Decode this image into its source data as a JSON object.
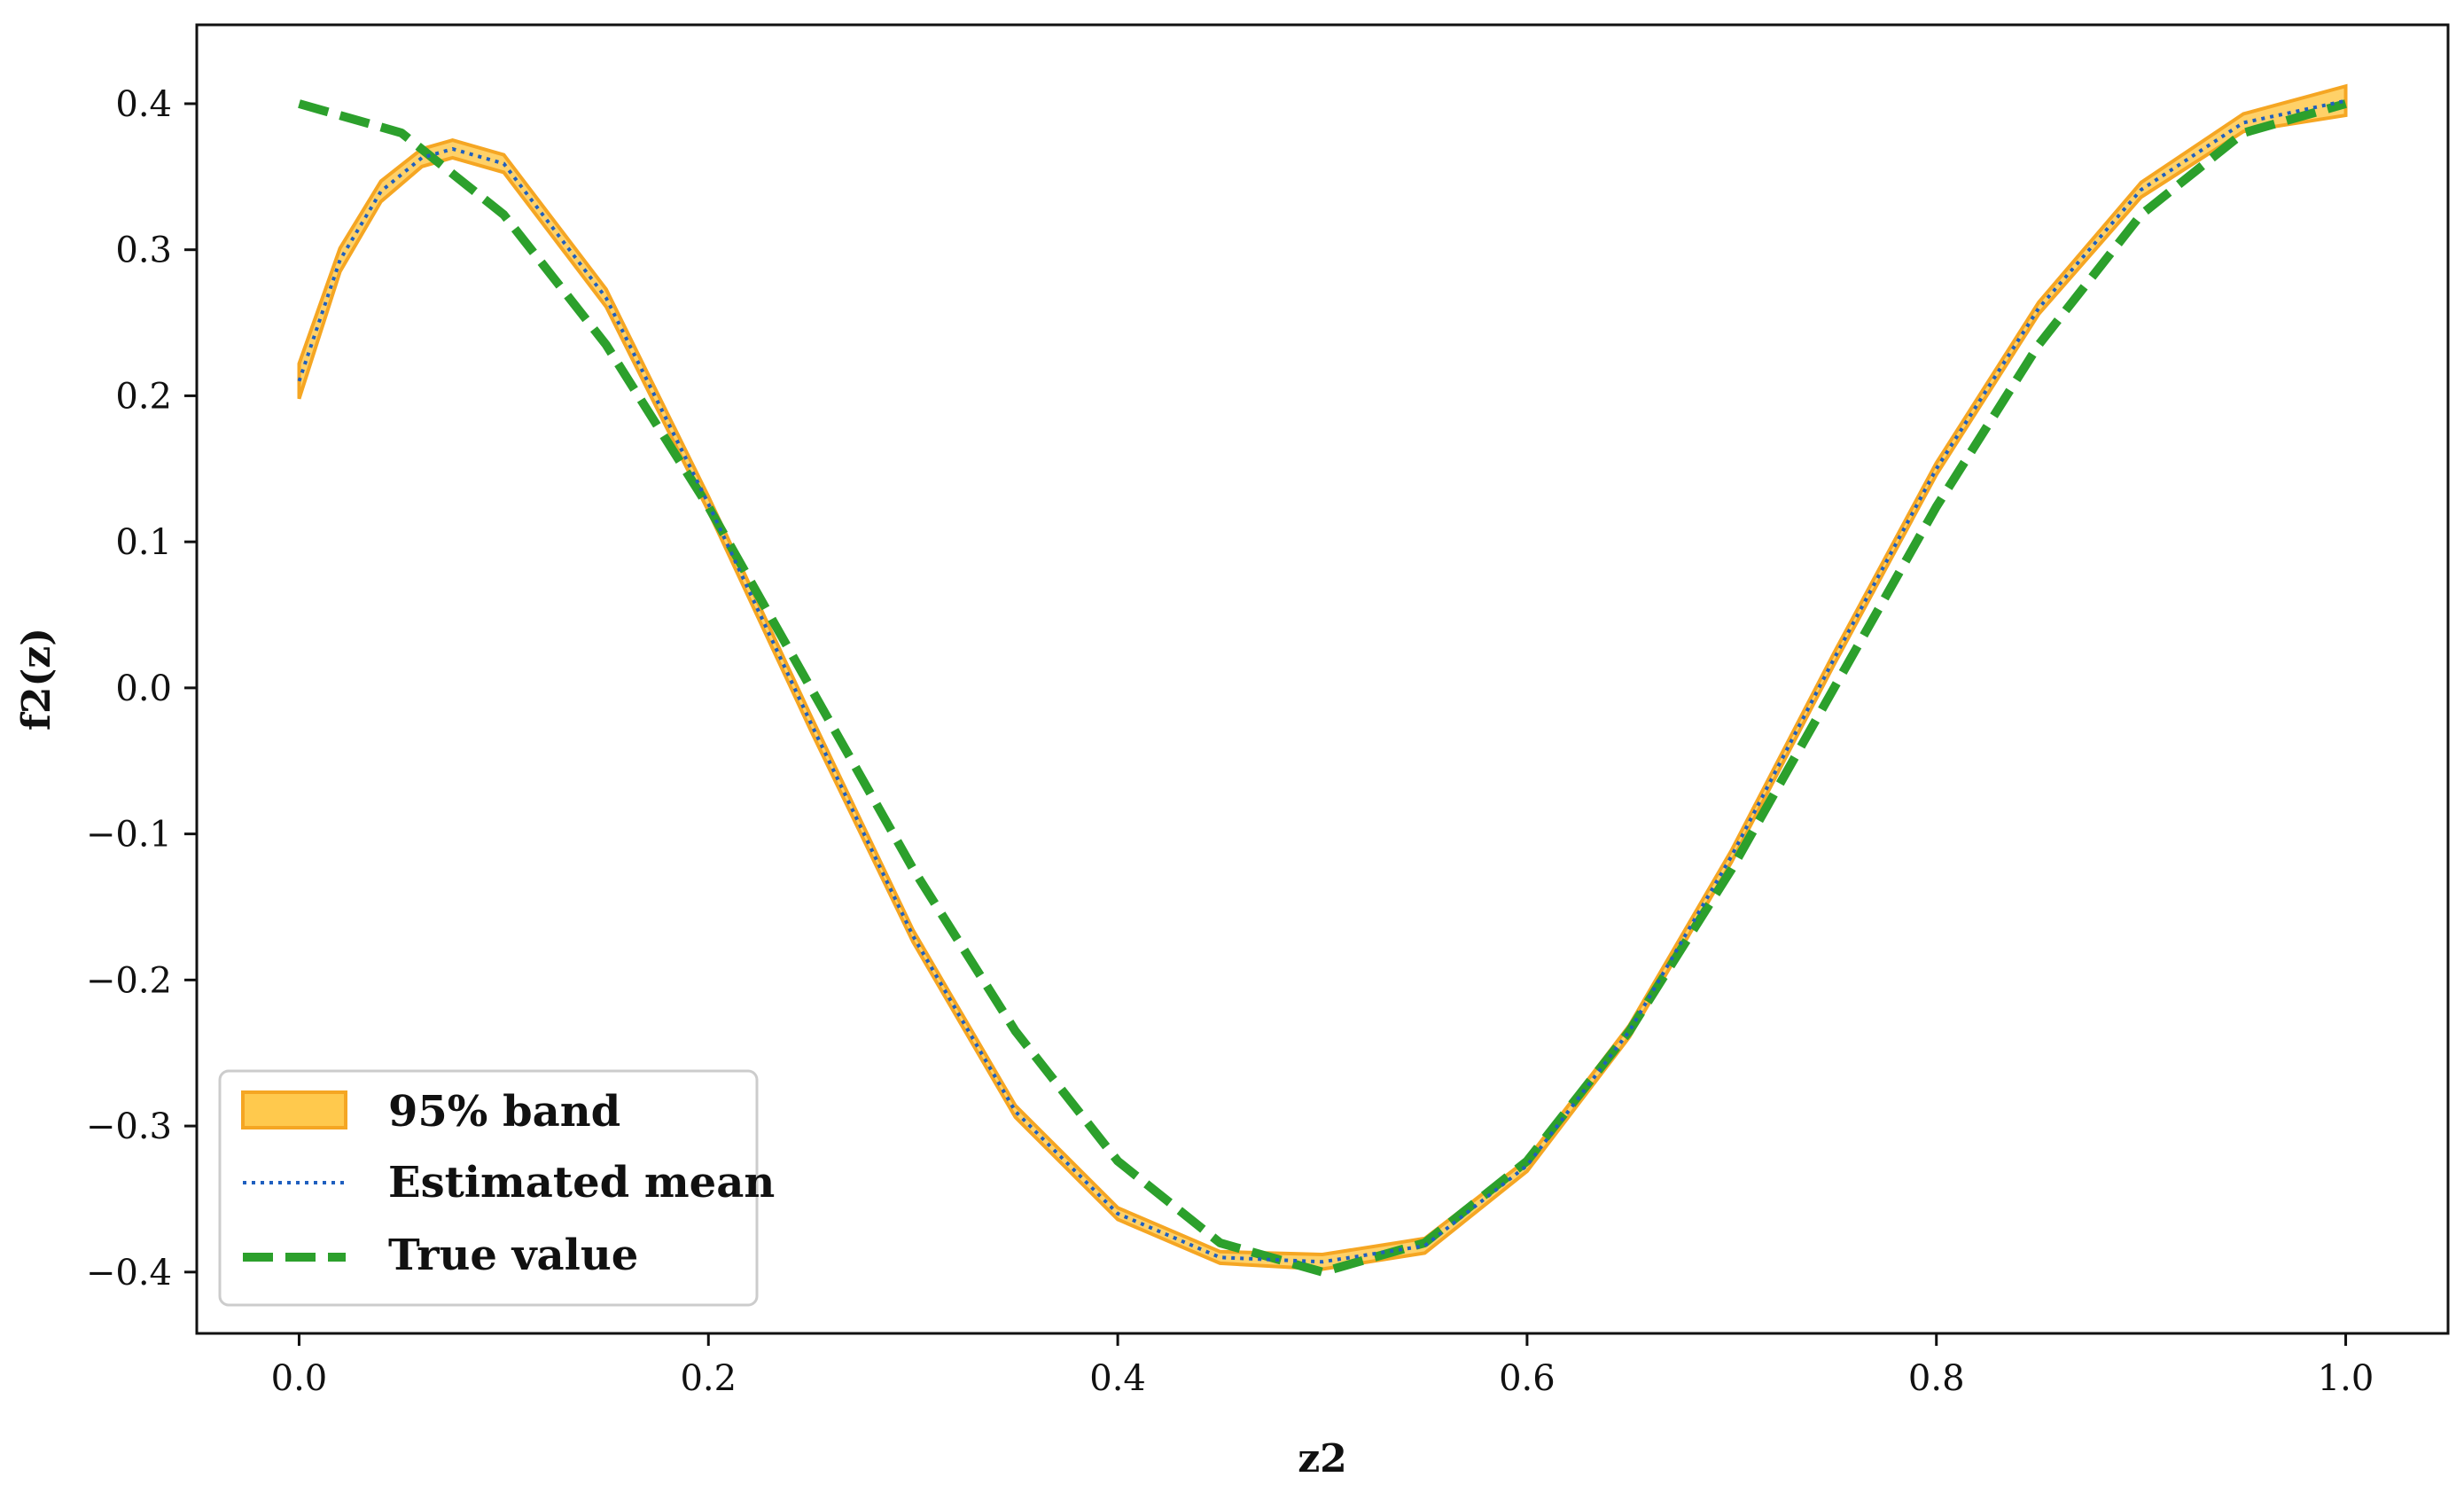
{
  "chart_data": {
    "type": "line",
    "title": "",
    "xlabel": "z2",
    "ylabel": "f2(z)",
    "xlim": [
      -0.05,
      1.05
    ],
    "ylim": [
      -0.442,
      0.454
    ],
    "xticks": [
      0.0,
      0.2,
      0.4,
      0.6,
      0.8,
      1.0
    ],
    "xtick_labels": [
      "0.0",
      "0.2",
      "0.4",
      "0.6",
      "0.8",
      "1.0"
    ],
    "yticks": [
      0.4,
      0.3,
      0.2,
      0.1,
      0.0,
      -0.1,
      -0.2,
      -0.3,
      -0.4
    ],
    "ytick_labels": [
      "0.4",
      "0.3",
      "0.2",
      "0.1",
      "0.0",
      "−0.1",
      "−0.2",
      "−0.3",
      "−0.4"
    ],
    "grid": false,
    "legend_position": "bottom-left",
    "colors": {
      "band_fill": "#ffc94d",
      "band_edge": "#f5a623",
      "estimated": "#1f5fbf",
      "true": "#2ca02c"
    },
    "series": [
      {
        "name": "95% band",
        "kind": "band",
        "x": [
          0.0,
          0.02,
          0.04,
          0.06,
          0.075,
          0.1,
          0.15,
          0.2,
          0.25,
          0.3,
          0.35,
          0.4,
          0.45,
          0.5,
          0.55,
          0.6,
          0.65,
          0.7,
          0.75,
          0.8,
          0.85,
          0.9,
          0.95,
          1.0
        ],
        "lower": [
          0.198,
          0.285,
          0.333,
          0.357,
          0.363,
          0.353,
          0.261,
          0.121,
          -0.029,
          -0.174,
          -0.294,
          -0.364,
          -0.394,
          -0.398,
          -0.387,
          -0.331,
          -0.239,
          -0.119,
          0.016,
          0.146,
          0.256,
          0.336,
          0.381,
          0.392
        ],
        "upper": [
          0.222,
          0.301,
          0.347,
          0.369,
          0.375,
          0.365,
          0.273,
          0.131,
          -0.019,
          -0.166,
          -0.286,
          -0.356,
          -0.386,
          -0.388,
          -0.377,
          -0.323,
          -0.231,
          -0.111,
          0.024,
          0.154,
          0.264,
          0.346,
          0.393,
          0.412
        ]
      },
      {
        "name": "Estimated mean",
        "kind": "line",
        "x": [
          0.0,
          0.02,
          0.04,
          0.06,
          0.075,
          0.1,
          0.15,
          0.2,
          0.25,
          0.3,
          0.35,
          0.4,
          0.45,
          0.5,
          0.55,
          0.6,
          0.65,
          0.7,
          0.75,
          0.8,
          0.85,
          0.9,
          0.95,
          1.0
        ],
        "y": [
          0.21,
          0.293,
          0.34,
          0.363,
          0.369,
          0.359,
          0.267,
          0.126,
          -0.024,
          -0.17,
          -0.29,
          -0.36,
          -0.39,
          -0.393,
          -0.382,
          -0.327,
          -0.235,
          -0.115,
          0.02,
          0.15,
          0.26,
          0.341,
          0.387,
          0.402
        ]
      },
      {
        "name": "True value",
        "kind": "line",
        "x": [
          0.0,
          0.05,
          0.1,
          0.15,
          0.2,
          0.25,
          0.3,
          0.35,
          0.4,
          0.45,
          0.5,
          0.55,
          0.6,
          0.65,
          0.7,
          0.75,
          0.8,
          0.85,
          0.9,
          0.95,
          1.0
        ],
        "y": [
          0.4,
          0.38,
          0.324,
          0.235,
          0.124,
          0.0,
          -0.124,
          -0.235,
          -0.324,
          -0.38,
          -0.4,
          -0.38,
          -0.324,
          -0.235,
          -0.124,
          0.0,
          0.124,
          0.235,
          0.324,
          0.38,
          0.4
        ]
      }
    ]
  }
}
